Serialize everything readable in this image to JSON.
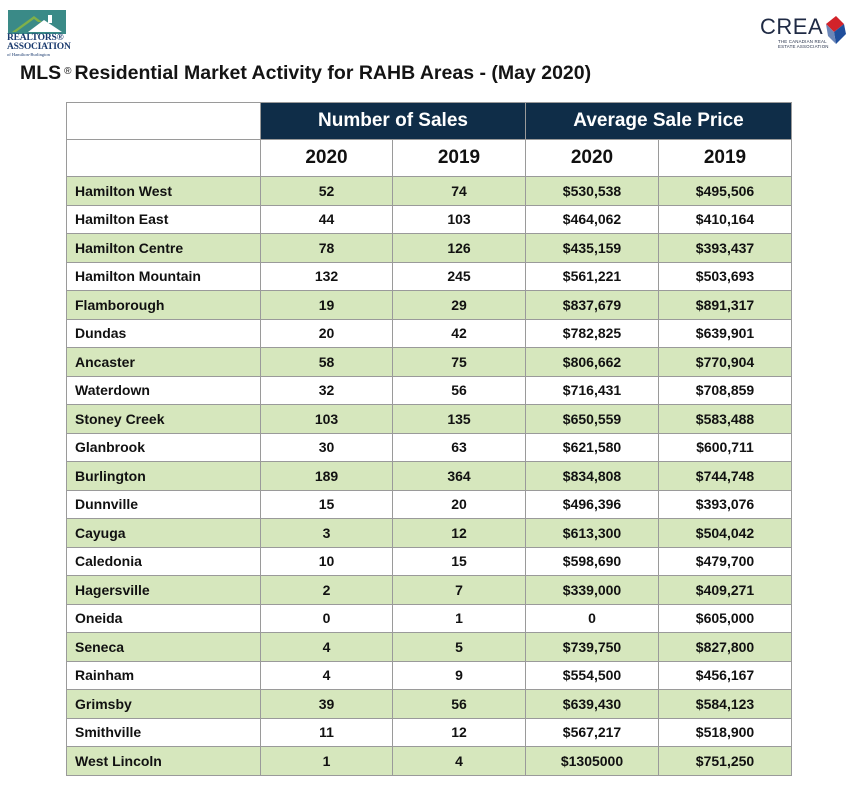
{
  "header": {
    "left_logo": {
      "line1": "REALTORS®",
      "line2": "ASSOCIATION",
      "line3": "of Hamilton-Burlington",
      "icon": "house-roof-icon"
    },
    "right_logo": {
      "word": "CREA",
      "subtitle": "THE CANADIAN REAL ESTATE ASSOCIATION",
      "icon": "crea-diamond-icon"
    },
    "title_prefix": "MLS",
    "title_mark": "®",
    "title_rest": "Residential Market Activity for RAHB Areas - (May 2020)"
  },
  "table": {
    "group_headers": {
      "sales": "Number of Sales",
      "price": "Average Sale Price"
    },
    "year_headers": [
      "2020",
      "2019",
      "2020",
      "2019"
    ],
    "rows": [
      {
        "area": "Hamilton West",
        "sales_2020": "52",
        "sales_2019": "74",
        "price_2020": "$530,538",
        "price_2019": "$495,506"
      },
      {
        "area": "Hamilton East",
        "sales_2020": "44",
        "sales_2019": "103",
        "price_2020": "$464,062",
        "price_2019": "$410,164"
      },
      {
        "area": "Hamilton Centre",
        "sales_2020": "78",
        "sales_2019": "126",
        "price_2020": "$435,159",
        "price_2019": "$393,437"
      },
      {
        "area": "Hamilton Mountain",
        "sales_2020": "132",
        "sales_2019": "245",
        "price_2020": "$561,221",
        "price_2019": "$503,693"
      },
      {
        "area": "Flamborough",
        "sales_2020": "19",
        "sales_2019": "29",
        "price_2020": "$837,679",
        "price_2019": "$891,317"
      },
      {
        "area": "Dundas",
        "sales_2020": "20",
        "sales_2019": "42",
        "price_2020": "$782,825",
        "price_2019": "$639,901"
      },
      {
        "area": "Ancaster",
        "sales_2020": "58",
        "sales_2019": "75",
        "price_2020": "$806,662",
        "price_2019": "$770,904"
      },
      {
        "area": "Waterdown",
        "sales_2020": "32",
        "sales_2019": "56",
        "price_2020": "$716,431",
        "price_2019": "$708,859"
      },
      {
        "area": "Stoney Creek",
        "sales_2020": "103",
        "sales_2019": "135",
        "price_2020": "$650,559",
        "price_2019": "$583,488"
      },
      {
        "area": "Glanbrook",
        "sales_2020": "30",
        "sales_2019": "63",
        "price_2020": "$621,580",
        "price_2019": "$600,711"
      },
      {
        "area": "Burlington",
        "sales_2020": "189",
        "sales_2019": "364",
        "price_2020": "$834,808",
        "price_2019": "$744,748"
      },
      {
        "area": "Dunnville",
        "sales_2020": "15",
        "sales_2019": "20",
        "price_2020": "$496,396",
        "price_2019": "$393,076"
      },
      {
        "area": "Cayuga",
        "sales_2020": "3",
        "sales_2019": "12",
        "price_2020": "$613,300",
        "price_2019": "$504,042"
      },
      {
        "area": "Caledonia",
        "sales_2020": "10",
        "sales_2019": "15",
        "price_2020": "$598,690",
        "price_2019": "$479,700"
      },
      {
        "area": "Hagersville",
        "sales_2020": "2",
        "sales_2019": "7",
        "price_2020": "$339,000",
        "price_2019": "$409,271"
      },
      {
        "area": "Oneida",
        "sales_2020": "0",
        "sales_2019": "1",
        "price_2020": "0",
        "price_2019": "$605,000"
      },
      {
        "area": "Seneca",
        "sales_2020": "4",
        "sales_2019": "5",
        "price_2020": "$739,750",
        "price_2019": "$827,800"
      },
      {
        "area": "Rainham",
        "sales_2020": "4",
        "sales_2019": "9",
        "price_2020": "$554,500",
        "price_2019": "$456,167"
      },
      {
        "area": "Grimsby",
        "sales_2020": "39",
        "sales_2019": "56",
        "price_2020": "$639,430",
        "price_2019": "$584,123"
      },
      {
        "area": "Smithville",
        "sales_2020": "11",
        "sales_2019": "12",
        "price_2020": "$567,217",
        "price_2019": "$518,900"
      },
      {
        "area": "West Lincoln",
        "sales_2020": "1",
        "sales_2019": "4",
        "price_2020": "$1305000",
        "price_2019": "$751,250"
      }
    ]
  },
  "colors": {
    "header_navy": "#0f2d48",
    "row_green": "#d6e7bd",
    "grid_gray": "#9a9a9a",
    "logo_teal": "#3a8a87",
    "logo_green": "#7fb04a",
    "crea_red": "#d2232a",
    "crea_blue": "#1f4e9c"
  }
}
